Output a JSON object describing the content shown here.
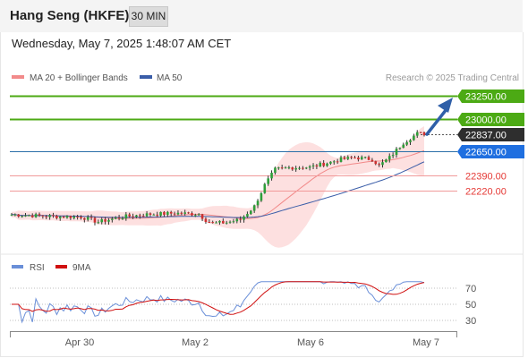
{
  "header": {
    "title": "Hang Seng (HKFE)",
    "timeframe": "30 MIN",
    "datetime": "Wednesday, May 7, 2025 1:48:07 AM CET"
  },
  "legend": {
    "ma20_bb": "MA 20 + Bollinger Bands",
    "ma50": "MA 50",
    "copyright": "Research © 2025 Trading Central"
  },
  "colors": {
    "green": "#4caa14",
    "red": "#e53935",
    "blue_line": "#2a6fa8",
    "price_tag": "#2e2e2e",
    "pivot_tag": "#1f6fe0",
    "arrow": "#2f5fa8",
    "ma20": "#f28a8a",
    "ma50": "#3a5da8",
    "bb_fill": "#fde0e0",
    "rsi": "#6a8fd8",
    "rsi_ma": "#d01010"
  },
  "chart_data": [
    {
      "type": "candlestick",
      "ylim": [
        21600,
        23450
      ],
      "x_ticks": [
        "Apr 30",
        "May 2",
        "May 6",
        "May 7"
      ],
      "levels": [
        {
          "label": "23250.00",
          "value": 23250,
          "kind": "resistance"
        },
        {
          "label": "23000.00",
          "value": 23000,
          "kind": "resistance"
        },
        {
          "label": "22837.00",
          "value": 22837,
          "kind": "last-price"
        },
        {
          "label": "22650.00",
          "value": 22650,
          "kind": "pivot"
        },
        {
          "label": "22390.00",
          "value": 22390,
          "kind": "support"
        },
        {
          "label": "22220.00",
          "value": 22220,
          "kind": "support"
        }
      ],
      "series": [
        {
          "name": "MA 20 + Bollinger Bands"
        },
        {
          "name": "MA 50"
        }
      ]
    },
    {
      "type": "line",
      "ylim": [
        10,
        90
      ],
      "y_ticks": [
        70,
        50,
        30
      ],
      "series": [
        {
          "name": "RSI"
        },
        {
          "name": "9MA"
        }
      ]
    }
  ]
}
